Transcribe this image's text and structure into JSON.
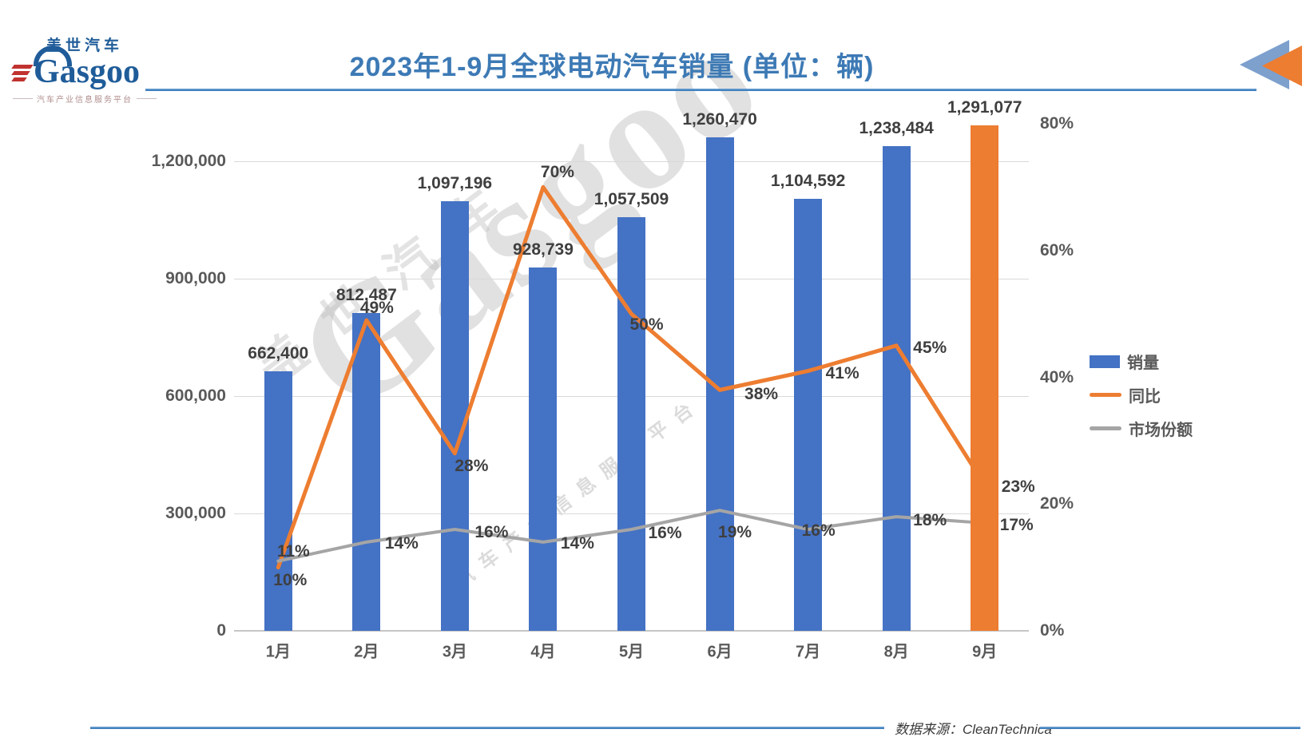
{
  "header": {
    "logo_cn": "盖世汽车",
    "logo_en": "Gasgoo",
    "logo_tagline": "汽车产业信息服务平台",
    "title": "2023年1-9月全球电动汽车销量 (单位：辆)"
  },
  "watermark": {
    "en": "Gasgoo",
    "cn": "盖世汽车",
    "tagline": "汽车产业信息服务平台"
  },
  "chart_data": {
    "type": "bar+line",
    "title": "2023年1-9月全球电动汽车销量 (单位：辆)",
    "categories": [
      "1月",
      "2月",
      "3月",
      "4月",
      "5月",
      "6月",
      "7月",
      "8月",
      "9月"
    ],
    "series": [
      {
        "name": "销量",
        "type": "bar",
        "axis": "left",
        "values": [
          662400,
          812487,
          1097196,
          928739,
          1057509,
          1260470,
          1104592,
          1238484,
          1291077
        ],
        "color": "#4472C4",
        "highlight_index": 8,
        "highlight_color": "#ED7D31"
      },
      {
        "name": "同比",
        "type": "line",
        "axis": "right",
        "unit": "%",
        "values": [
          10,
          49,
          28,
          70,
          50,
          38,
          41,
          45,
          23
        ],
        "color": "#ED7D31"
      },
      {
        "name": "市场份额",
        "type": "line",
        "axis": "right",
        "unit": "%",
        "values": [
          11,
          14,
          16,
          14,
          16,
          19,
          16,
          18,
          17
        ],
        "color": "#A5A5A5"
      }
    ],
    "left_axis": {
      "ticks": [
        0,
        300000,
        600000,
        900000,
        1200000
      ],
      "max": 1295918
    },
    "right_axis": {
      "ticks": [
        0,
        20,
        40,
        60,
        80
      ],
      "max": 80,
      "suffix": "%"
    },
    "grid": true,
    "legend_position": "right",
    "theme": {
      "title": "#3D7AB5",
      "rule": "#2E75B6",
      "grid": "#D9D9D9",
      "axis_text": "#595959",
      "label_text": "#3F3F3F"
    }
  },
  "footer": {
    "source": "数据来源：CleanTechnica"
  }
}
